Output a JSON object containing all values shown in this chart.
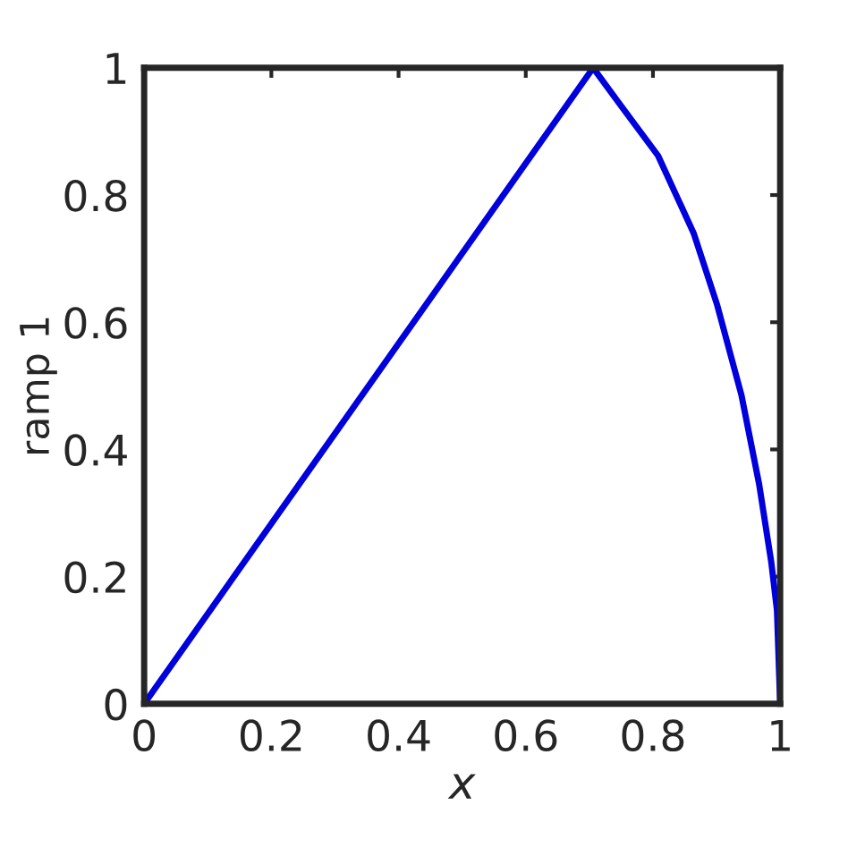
{
  "chart_data": {
    "type": "line",
    "xlabel": "x",
    "ylabel": "ramp 1",
    "x": [
      0,
      0.706,
      0.75,
      0.808,
      0.864,
      0.901,
      0.939,
      0.967,
      0.986,
      0.995,
      1
    ],
    "series": [
      {
        "color": "#0000dd",
        "values": [
          0,
          1,
          0.94,
          0.862,
          0.74,
          0.627,
          0.486,
          0.345,
          0.223,
          0.147,
          0
        ]
      }
    ],
    "xlim": [
      0,
      1
    ],
    "ylim": [
      0,
      1
    ],
    "xticks": [
      0,
      0.2,
      0.4,
      0.6,
      0.8,
      1
    ],
    "yticks": [
      0,
      0.2,
      0.4,
      0.6,
      0.8,
      1
    ],
    "grid": false,
    "marker": "none",
    "line_style": "solid"
  }
}
